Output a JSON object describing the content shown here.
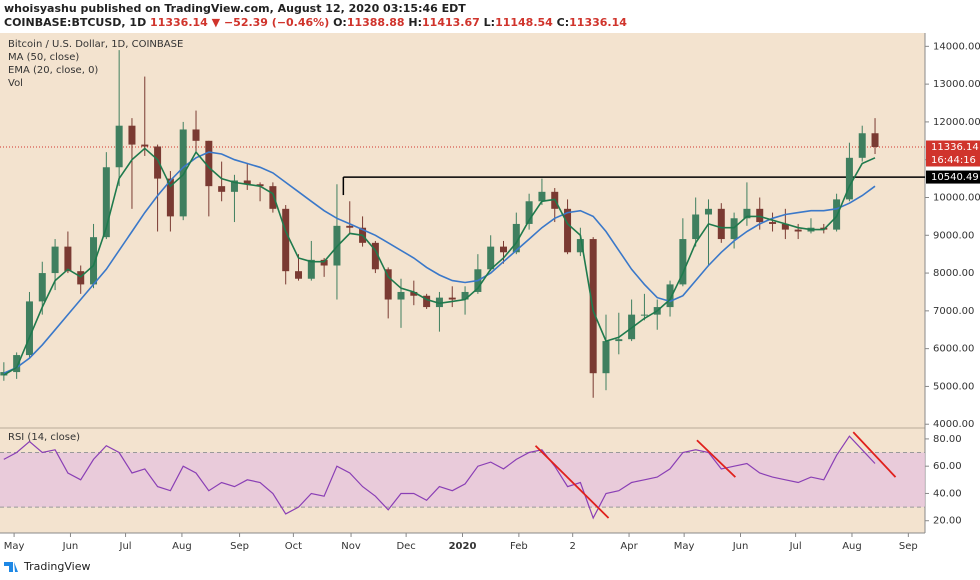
{
  "header": {
    "line1": "whoisyashu published on TradingView.com, August 12, 2020 03:15:46 EDT",
    "symbol": "COINBASE:BTCUSD, 1D",
    "last": "11336.14",
    "change": "▼ −52.39 (−0.46%)",
    "ohlc": [
      {
        "key": "O:",
        "value": "11388.88"
      },
      {
        "key": "H:",
        "value": "11413.67"
      },
      {
        "key": "L:",
        "value": "11148.54"
      },
      {
        "key": "C:",
        "value": "11336.14"
      }
    ]
  },
  "footer": {
    "brand": "TradingView"
  },
  "chart_data": [
    {
      "type": "candlestick",
      "title": "Bitcoin / U.S. Dollar, 1D, COINBASE",
      "legend": [
        "MA (50, close)",
        "EMA (20, close, 0)",
        "Vol"
      ],
      "up_color": "#3f7f5f",
      "down_color": "#7a3a32",
      "open": [
        5290,
        5380,
        5830,
        7250,
        8000,
        8700,
        8050,
        7700,
        8950,
        10800,
        11900,
        11400,
        11350,
        10500,
        9500,
        11800,
        11500,
        10300,
        10150,
        10450,
        10350,
        10300,
        9700,
        8050,
        7850,
        8350,
        8200,
        9250,
        9200,
        8800,
        8100,
        7300,
        7500,
        7400,
        7100,
        7350,
        7300,
        7500,
        8100,
        8700,
        8550,
        9300,
        9900,
        10150,
        9700,
        8550,
        8900,
        5350,
        6200,
        6250,
        6900,
        6900,
        7100,
        7700,
        8900,
        9550,
        9700,
        8900,
        9450,
        9700,
        9350,
        9300,
        9150,
        9100,
        9200,
        9150,
        9950,
        11050,
        11700
      ],
      "high": [
        5640,
        5900,
        7500,
        8300,
        8900,
        9100,
        8200,
        9300,
        11200,
        13900,
        12100,
        13200,
        11400,
        10700,
        12000,
        12300,
        11500,
        10950,
        10600,
        10900,
        10400,
        10400,
        9800,
        8500,
        8850,
        8400,
        10350,
        9900,
        9500,
        8850,
        8150,
        7850,
        7800,
        7450,
        7500,
        7650,
        7650,
        8500,
        9000,
        8850,
        9600,
        10100,
        10500,
        10250,
        9950,
        9200,
        8950,
        6900,
        6950,
        7300,
        7450,
        7300,
        7800,
        9450,
        10000,
        9950,
        9850,
        9600,
        10400,
        10000,
        9600,
        9700,
        9300,
        9450,
        9300,
        10100,
        11450,
        11900,
        12100
      ],
      "low": [
        5150,
        5200,
        5750,
        6900,
        7550,
        8000,
        7450,
        7600,
        8900,
        10300,
        9700,
        11100,
        9100,
        9100,
        9400,
        11200,
        9500,
        9900,
        9350,
        10200,
        9900,
        9600,
        7700,
        7800,
        7800,
        7900,
        7300,
        9050,
        8700,
        8000,
        6800,
        6550,
        7150,
        7050,
        6450,
        7100,
        6900,
        7450,
        8050,
        8250,
        8500,
        9150,
        9800,
        9350,
        8500,
        8450,
        4700,
        4900,
        5850,
        6200,
        6750,
        6500,
        6850,
        7650,
        8700,
        8200,
        8800,
        8650,
        9250,
        9150,
        9100,
        8900,
        8900,
        9050,
        9050,
        9100,
        9900,
        10950,
        11150
      ],
      "close": [
        5380,
        5830,
        7250,
        8000,
        8700,
        8050,
        7700,
        8950,
        10800,
        11900,
        11400,
        11350,
        10500,
        9500,
        11800,
        11500,
        10300,
        10150,
        10450,
        10350,
        10300,
        9700,
        8050,
        7850,
        8350,
        8200,
        9250,
        9200,
        8800,
        8100,
        7300,
        7500,
        7400,
        7100,
        7350,
        7300,
        7500,
        8100,
        8700,
        8550,
        9300,
        9900,
        10150,
        9700,
        8550,
        8900,
        5350,
        6200,
        6250,
        6900,
        6900,
        7100,
        7700,
        8900,
        9550,
        9700,
        8900,
        9450,
        9700,
        9350,
        9300,
        9150,
        9100,
        9200,
        9150,
        9950,
        11050,
        11700,
        11336.14
      ],
      "series": [
        {
          "name": "MA (50, close)",
          "color": "#3a78c9",
          "values": [
            5350,
            5500,
            5750,
            6100,
            6500,
            6900,
            7300,
            7700,
            8100,
            8600,
            9100,
            9600,
            10050,
            10450,
            10800,
            11050,
            11200,
            11150,
            11000,
            10900,
            10800,
            10650,
            10400,
            10150,
            9900,
            9650,
            9450,
            9300,
            9150,
            9000,
            8800,
            8600,
            8400,
            8150,
            7950,
            7800,
            7750,
            7800,
            8000,
            8300,
            8600,
            8900,
            9200,
            9450,
            9600,
            9650,
            9500,
            9100,
            8600,
            8100,
            7700,
            7350,
            7250,
            7400,
            7800,
            8200,
            8550,
            8850,
            9100,
            9300,
            9450,
            9550,
            9600,
            9650,
            9650,
            9700,
            9850,
            10050,
            10300
          ]
        },
        {
          "name": "EMA (20, close, 0)",
          "color": "#1f7a4d",
          "values": [
            5300,
            5500,
            6300,
            7100,
            7800,
            8100,
            7900,
            8200,
            9200,
            10500,
            11000,
            11300,
            11000,
            10300,
            10600,
            11200,
            10800,
            10500,
            10400,
            10350,
            10300,
            10100,
            9100,
            8400,
            8300,
            8300,
            8700,
            9050,
            9000,
            8600,
            7900,
            7600,
            7500,
            7300,
            7200,
            7250,
            7300,
            7600,
            8100,
            8400,
            8800,
            9400,
            9900,
            9950,
            9300,
            9000,
            7000,
            6200,
            6300,
            6550,
            6800,
            7000,
            7300,
            8000,
            8800,
            9300,
            9200,
            9200,
            9500,
            9500,
            9400,
            9300,
            9200,
            9150,
            9150,
            9500,
            10300,
            10900,
            11050
          ]
        }
      ],
      "xlim": [
        -0.3,
        71.9
      ],
      "xticks": [
        {
          "value": 0.8,
          "label": "May"
        },
        {
          "value": 5.2,
          "label": "Jun"
        },
        {
          "value": 9.5,
          "label": "Jul"
        },
        {
          "value": 13.9,
          "label": "Aug"
        },
        {
          "value": 18.4,
          "label": "Sep"
        },
        {
          "value": 22.6,
          "label": "Oct"
        },
        {
          "value": 27.1,
          "label": "Nov"
        },
        {
          "value": 31.4,
          "label": "Dec"
        },
        {
          "value": 35.8,
          "label": "2020"
        },
        {
          "value": 40.2,
          "label": "Feb"
        },
        {
          "value": 44.4,
          "label": "2"
        },
        {
          "value": 48.8,
          "label": "Apr"
        },
        {
          "value": 53.1,
          "label": "May"
        },
        {
          "value": 57.5,
          "label": "Jun"
        },
        {
          "value": 61.8,
          "label": "Jul"
        },
        {
          "value": 66.2,
          "label": "Aug"
        },
        {
          "value": 70.6,
          "label": "Sep"
        }
      ],
      "ylim": [
        3900,
        14300
      ],
      "yticks": [
        {
          "value": 4000,
          "label": "4000.00"
        },
        {
          "value": 5000,
          "label": "5000.00"
        },
        {
          "value": 6000,
          "label": "6000.00"
        },
        {
          "value": 7000,
          "label": "7000.00"
        },
        {
          "value": 8000,
          "label": "8000.00"
        },
        {
          "value": 9000,
          "label": "9000.00"
        },
        {
          "value": 10000,
          "label": "10000.00"
        },
        {
          "value": 11000,
          "label": "11000.00"
        },
        {
          "value": 12000,
          "label": "12000.00"
        },
        {
          "value": 13000,
          "label": "13000.00"
        },
        {
          "value": 14000,
          "label": "14000.00"
        }
      ],
      "last_price": 11336.14,
      "countdown": "16:44:16",
      "level": 10540.49,
      "level_start": 26.5
    },
    {
      "type": "line",
      "title": "RSI (14, close)",
      "color": "#8a3fb5",
      "band_color": "#e6c4dc",
      "values": [
        65,
        70,
        78,
        70,
        72,
        55,
        50,
        65,
        75,
        70,
        55,
        58,
        45,
        42,
        60,
        55,
        42,
        48,
        45,
        50,
        48,
        40,
        25,
        30,
        40,
        38,
        60,
        55,
        45,
        38,
        28,
        40,
        40,
        35,
        45,
        42,
        47,
        60,
        63,
        58,
        65,
        70,
        72,
        60,
        45,
        48,
        22,
        40,
        42,
        48,
        50,
        52,
        58,
        70,
        72,
        70,
        58,
        60,
        62,
        55,
        52,
        50,
        48,
        52,
        50,
        68,
        82,
        72,
        62
      ],
      "band": [
        30,
        70
      ],
      "ylim": [
        11,
        88
      ],
      "yticks": [
        {
          "value": 20,
          "label": "20.00"
        },
        {
          "value": 40,
          "label": "40.00"
        },
        {
          "value": 60,
          "label": "60.00"
        },
        {
          "value": 80,
          "label": "80.00"
        }
      ],
      "trendline_color": "#e0201c",
      "trendlines": [
        {
          "x": [
            41.5,
            47.2
          ],
          "y": [
            75,
            22
          ]
        },
        {
          "x": [
            54.1,
            57.1
          ],
          "y": [
            79,
            52
          ]
        },
        {
          "x": [
            66.3,
            69.6
          ],
          "y": [
            85,
            52
          ]
        }
      ]
    }
  ]
}
